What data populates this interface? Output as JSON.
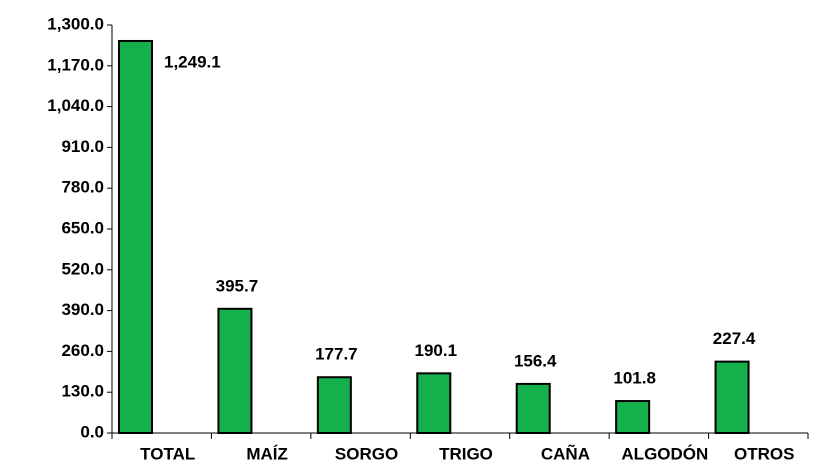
{
  "chart_data": {
    "type": "bar",
    "categories": [
      "TOTAL",
      "MAÍZ",
      "SORGO",
      "TRIGO",
      "CAÑA",
      "ALGODÓN",
      "OTROS"
    ],
    "values": [
      1249.1,
      395.7,
      177.7,
      190.1,
      156.4,
      101.8,
      227.4
    ],
    "value_labels": [
      "1,249.1",
      "395.7",
      "177.7",
      "190.1",
      "156.4",
      "101.8",
      "227.4"
    ],
    "color": "#13b04b",
    "ylim": [
      0,
      1300
    ],
    "yticks": [
      {
        "value": 0,
        "label": "0.0"
      },
      {
        "value": 130,
        "label": "130.0"
      },
      {
        "value": 260,
        "label": "260.0"
      },
      {
        "value": 390,
        "label": "390.0"
      },
      {
        "value": 520,
        "label": "520.0"
      },
      {
        "value": 650,
        "label": "650.0"
      },
      {
        "value": 780,
        "label": "780.0"
      },
      {
        "value": 910,
        "label": "910.0"
      },
      {
        "value": 1040,
        "label": "1,040.0"
      },
      {
        "value": 1170,
        "label": "1,170.0"
      },
      {
        "value": 1300,
        "label": "1,300.0"
      }
    ],
    "grid": false
  }
}
